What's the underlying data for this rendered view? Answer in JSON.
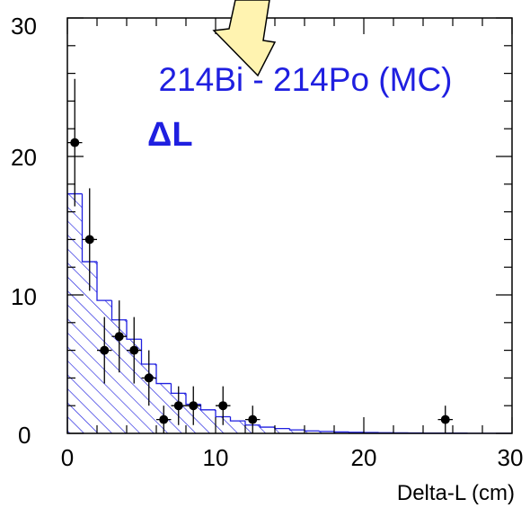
{
  "chart_data": {
    "type": "histogram",
    "title": "",
    "xlabel": "Delta-L (cm)",
    "ylabel": "",
    "xlim": [
      0,
      30
    ],
    "ylim": [
      0,
      30
    ],
    "x_ticks": [
      "0",
      "10",
      "20",
      "30"
    ],
    "y_ticks": [
      "0",
      "10",
      "20",
      "30"
    ],
    "grid": false,
    "annotations": {
      "line1": "214Bi - 214Po (MC)",
      "line2": "ΔL"
    },
    "colors": {
      "mc_histogram": "#1f1fe0",
      "data_points": "#000000",
      "arrow": "#fff3b0"
    },
    "series": [
      {
        "style": "hatched-step-histogram",
        "bin_edges": [
          0,
          1,
          2,
          3,
          4,
          5,
          6,
          7,
          8,
          9,
          10,
          11,
          12,
          13,
          14,
          15,
          16,
          17,
          18,
          19,
          20,
          21,
          22,
          23,
          24,
          25,
          26,
          27,
          28,
          29,
          30
        ],
        "values": [
          17.3,
          12.4,
          9.6,
          8.2,
          6.8,
          5.0,
          3.6,
          2.9,
          2.1,
          1.7,
          1.2,
          0.9,
          0.6,
          0.45,
          0.35,
          0.25,
          0.18,
          0.14,
          0.1,
          0.08,
          0.06,
          0.05,
          0.04,
          0.03,
          0.02,
          0.02,
          0.02,
          0.01,
          0.01,
          0.01
        ]
      },
      {
        "style": "points-with-errorbars",
        "x": [
          0.5,
          1.5,
          2.5,
          3.5,
          4.5,
          5.5,
          6.5,
          7.5,
          8.5,
          10.5,
          12.5,
          25.5
        ],
        "y": [
          21,
          14,
          6,
          7,
          6,
          4,
          1,
          2,
          2,
          2,
          1,
          1
        ],
        "yerr": [
          4.6,
          3.7,
          2.4,
          2.6,
          2.4,
          2.0,
          1.0,
          1.4,
          1.4,
          1.4,
          1.0,
          1.0
        ]
      }
    ]
  }
}
